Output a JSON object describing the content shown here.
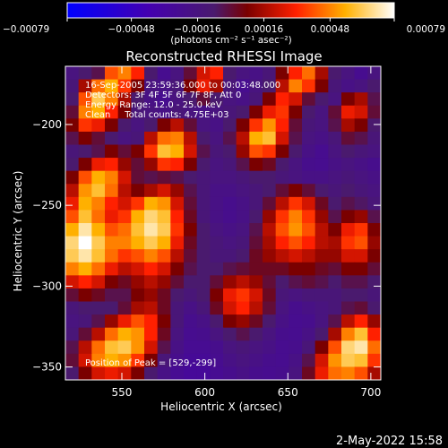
{
  "chart_data": {
    "type": "heatmap",
    "title": "Reconstructed RHESSI Image",
    "xlabel": "Heliocentric X (arcsec)",
    "ylabel": "Heliocentric Y (arcsec)",
    "xlim": [
      516,
      706
    ],
    "ylim": [
      -358,
      -164
    ],
    "xticks": [
      550,
      600,
      650,
      700
    ],
    "yticks": [
      -200,
      -250,
      -300,
      -350
    ],
    "xtick_labels": [
      "550",
      "600",
      "650",
      "700"
    ],
    "ytick_labels": [
      "−200",
      "−250",
      "−300",
      "−350"
    ],
    "colorbar": {
      "ticks": [
        -0.00079,
        -0.00048,
        -0.00016,
        0.00016,
        0.00048,
        0.00079
      ],
      "tick_labels": [
        "−0.00079",
        "−0.00048",
        "−0.00016",
        "0.00016",
        "0.00048",
        "0.00079"
      ],
      "units_label": "(photons cm⁻² s⁻¹ asec⁻²)",
      "min": -0.00079,
      "max": 0.00079
    },
    "colormap_stops": [
      {
        "v": 0.0,
        "color": "#0000ff"
      },
      {
        "v": 0.25,
        "color": "#4400b0"
      },
      {
        "v": 0.45,
        "color": "#4a1a6e"
      },
      {
        "v": 0.55,
        "color": "#7a0000"
      },
      {
        "v": 0.7,
        "color": "#ff2000"
      },
      {
        "v": 0.85,
        "color": "#ffb000"
      },
      {
        "v": 1.0,
        "color": "#ffffff"
      }
    ],
    "annotations": [
      "16-Sep-2005 23:59:36.000 to 00:03:48.000",
      "Detectors: 3F 4F 5F 6F 7F 8F, Att 0",
      "Energy Range: 12.0 - 25.0 keV",
      "Clean     Total counts: 4.75E+03",
      "Position of Peak = [529,-299]"
    ],
    "peak": {
      "x": 529,
      "y": -299
    },
    "grid": {
      "cols": 24,
      "rows": 24,
      "values": [
        [
          0.4,
          0.45,
          0.48,
          0.75,
          0.8,
          0.7,
          0.45,
          0.35,
          0.4,
          0.5,
          0.65,
          0.7,
          0.45,
          0.4,
          0.38,
          0.42,
          0.55,
          0.7,
          0.78,
          0.6,
          0.45,
          0.4,
          0.35,
          0.4
        ],
        [
          0.42,
          0.6,
          0.78,
          0.85,
          0.72,
          0.55,
          0.4,
          0.38,
          0.42,
          0.55,
          0.68,
          0.6,
          0.42,
          0.35,
          0.4,
          0.45,
          0.62,
          0.8,
          0.72,
          0.55,
          0.42,
          0.38,
          0.4,
          0.45
        ],
        [
          0.45,
          0.75,
          0.9,
          0.8,
          0.6,
          0.45,
          0.38,
          0.35,
          0.4,
          0.45,
          0.5,
          0.45,
          0.4,
          0.38,
          0.42,
          0.55,
          0.7,
          0.65,
          0.5,
          0.45,
          0.4,
          0.55,
          0.6,
          0.48
        ],
        [
          0.5,
          0.8,
          0.85,
          0.7,
          0.55,
          0.42,
          0.4,
          0.38,
          0.42,
          0.4,
          0.38,
          0.4,
          0.42,
          0.45,
          0.55,
          0.68,
          0.72,
          0.55,
          0.45,
          0.4,
          0.5,
          0.68,
          0.65,
          0.5
        ],
        [
          0.55,
          0.72,
          0.68,
          0.55,
          0.45,
          0.4,
          0.45,
          0.55,
          0.62,
          0.5,
          0.4,
          0.38,
          0.45,
          0.55,
          0.72,
          0.82,
          0.7,
          0.5,
          0.42,
          0.4,
          0.48,
          0.6,
          0.55,
          0.45
        ],
        [
          0.48,
          0.55,
          0.5,
          0.45,
          0.4,
          0.42,
          0.62,
          0.78,
          0.8,
          0.62,
          0.45,
          0.4,
          0.48,
          0.62,
          0.85,
          0.88,
          0.65,
          0.48,
          0.4,
          0.38,
          0.42,
          0.5,
          0.48,
          0.42
        ],
        [
          0.42,
          0.45,
          0.48,
          0.55,
          0.5,
          0.55,
          0.72,
          0.88,
          0.85,
          0.65,
          0.48,
          0.42,
          0.45,
          0.58,
          0.75,
          0.72,
          0.55,
          0.45,
          0.38,
          0.35,
          0.4,
          0.45,
          0.42,
          0.4
        ],
        [
          0.45,
          0.55,
          0.68,
          0.7,
          0.58,
          0.5,
          0.58,
          0.72,
          0.7,
          0.55,
          0.45,
          0.4,
          0.42,
          0.48,
          0.55,
          0.52,
          0.45,
          0.4,
          0.36,
          0.35,
          0.38,
          0.4,
          0.38,
          0.36
        ],
        [
          0.55,
          0.75,
          0.85,
          0.8,
          0.65,
          0.5,
          0.48,
          0.5,
          0.48,
          0.45,
          0.42,
          0.4,
          0.4,
          0.42,
          0.45,
          0.45,
          0.42,
          0.4,
          0.38,
          0.38,
          0.4,
          0.42,
          0.4,
          0.38
        ],
        [
          0.62,
          0.82,
          0.88,
          0.78,
          0.62,
          0.55,
          0.6,
          0.65,
          0.58,
          0.48,
          0.42,
          0.38,
          0.38,
          0.4,
          0.42,
          0.45,
          0.5,
          0.55,
          0.5,
          0.45,
          0.42,
          0.45,
          0.42,
          0.4
        ],
        [
          0.68,
          0.85,
          0.8,
          0.7,
          0.65,
          0.72,
          0.85,
          0.82,
          0.65,
          0.5,
          0.42,
          0.38,
          0.36,
          0.38,
          0.42,
          0.5,
          0.62,
          0.72,
          0.65,
          0.52,
          0.45,
          0.48,
          0.46,
          0.42
        ],
        [
          0.75,
          0.88,
          0.78,
          0.68,
          0.72,
          0.85,
          0.92,
          0.88,
          0.7,
          0.52,
          0.42,
          0.38,
          0.36,
          0.38,
          0.45,
          0.58,
          0.72,
          0.8,
          0.72,
          0.58,
          0.48,
          0.55,
          0.58,
          0.48
        ],
        [
          0.85,
          0.95,
          0.85,
          0.75,
          0.78,
          0.88,
          0.95,
          0.9,
          0.72,
          0.55,
          0.45,
          0.4,
          0.38,
          0.4,
          0.48,
          0.62,
          0.75,
          0.82,
          0.75,
          0.62,
          0.55,
          0.68,
          0.72,
          0.55
        ],
        [
          0.92,
          1.0,
          0.9,
          0.8,
          0.8,
          0.85,
          0.9,
          0.85,
          0.68,
          0.52,
          0.45,
          0.42,
          0.4,
          0.42,
          0.5,
          0.6,
          0.7,
          0.75,
          0.7,
          0.62,
          0.6,
          0.72,
          0.75,
          0.58
        ],
        [
          0.9,
          0.95,
          0.88,
          0.78,
          0.72,
          0.75,
          0.8,
          0.75,
          0.62,
          0.5,
          0.45,
          0.42,
          0.42,
          0.45,
          0.52,
          0.58,
          0.62,
          0.65,
          0.62,
          0.58,
          0.58,
          0.65,
          0.65,
          0.55
        ],
        [
          0.8,
          0.85,
          0.78,
          0.68,
          0.62,
          0.65,
          0.7,
          0.65,
          0.55,
          0.48,
          0.45,
          0.45,
          0.48,
          0.5,
          0.52,
          0.52,
          0.52,
          0.55,
          0.55,
          0.52,
          0.5,
          0.55,
          0.55,
          0.5
        ],
        [
          0.65,
          0.7,
          0.65,
          0.55,
          0.52,
          0.58,
          0.62,
          0.58,
          0.5,
          0.45,
          0.45,
          0.5,
          0.58,
          0.62,
          0.58,
          0.5,
          0.45,
          0.48,
          0.5,
          0.48,
          0.45,
          0.48,
          0.48,
          0.45
        ],
        [
          0.5,
          0.55,
          0.52,
          0.48,
          0.48,
          0.55,
          0.58,
          0.52,
          0.45,
          0.42,
          0.45,
          0.55,
          0.68,
          0.72,
          0.65,
          0.52,
          0.42,
          0.4,
          0.42,
          0.42,
          0.42,
          0.45,
          0.45,
          0.42
        ],
        [
          0.42,
          0.45,
          0.45,
          0.45,
          0.5,
          0.6,
          0.62,
          0.52,
          0.42,
          0.38,
          0.42,
          0.52,
          0.65,
          0.7,
          0.62,
          0.5,
          0.4,
          0.36,
          0.38,
          0.4,
          0.42,
          0.48,
          0.5,
          0.45
        ],
        [
          0.4,
          0.42,
          0.48,
          0.58,
          0.68,
          0.75,
          0.7,
          0.55,
          0.42,
          0.36,
          0.38,
          0.45,
          0.55,
          0.58,
          0.52,
          0.45,
          0.38,
          0.35,
          0.36,
          0.4,
          0.48,
          0.62,
          0.7,
          0.58
        ],
        [
          0.42,
          0.5,
          0.62,
          0.78,
          0.85,
          0.82,
          0.7,
          0.52,
          0.4,
          0.35,
          0.36,
          0.4,
          0.45,
          0.48,
          0.45,
          0.4,
          0.36,
          0.35,
          0.38,
          0.45,
          0.6,
          0.8,
          0.88,
          0.7
        ],
        [
          0.48,
          0.62,
          0.78,
          0.88,
          0.9,
          0.82,
          0.65,
          0.48,
          0.38,
          0.34,
          0.34,
          0.36,
          0.4,
          0.42,
          0.4,
          0.38,
          0.35,
          0.36,
          0.42,
          0.55,
          0.75,
          0.92,
          0.95,
          0.78
        ],
        [
          0.5,
          0.65,
          0.8,
          0.85,
          0.82,
          0.72,
          0.55,
          0.42,
          0.36,
          0.33,
          0.33,
          0.35,
          0.38,
          0.4,
          0.38,
          0.36,
          0.35,
          0.38,
          0.48,
          0.65,
          0.82,
          0.9,
          0.88,
          0.72
        ],
        [
          0.45,
          0.55,
          0.65,
          0.68,
          0.65,
          0.55,
          0.45,
          0.38,
          0.34,
          0.32,
          0.32,
          0.34,
          0.36,
          0.38,
          0.36,
          0.35,
          0.36,
          0.4,
          0.52,
          0.68,
          0.78,
          0.8,
          0.75,
          0.6
        ]
      ]
    }
  },
  "footer": {
    "timestamp": "2-May-2022 15:58"
  }
}
